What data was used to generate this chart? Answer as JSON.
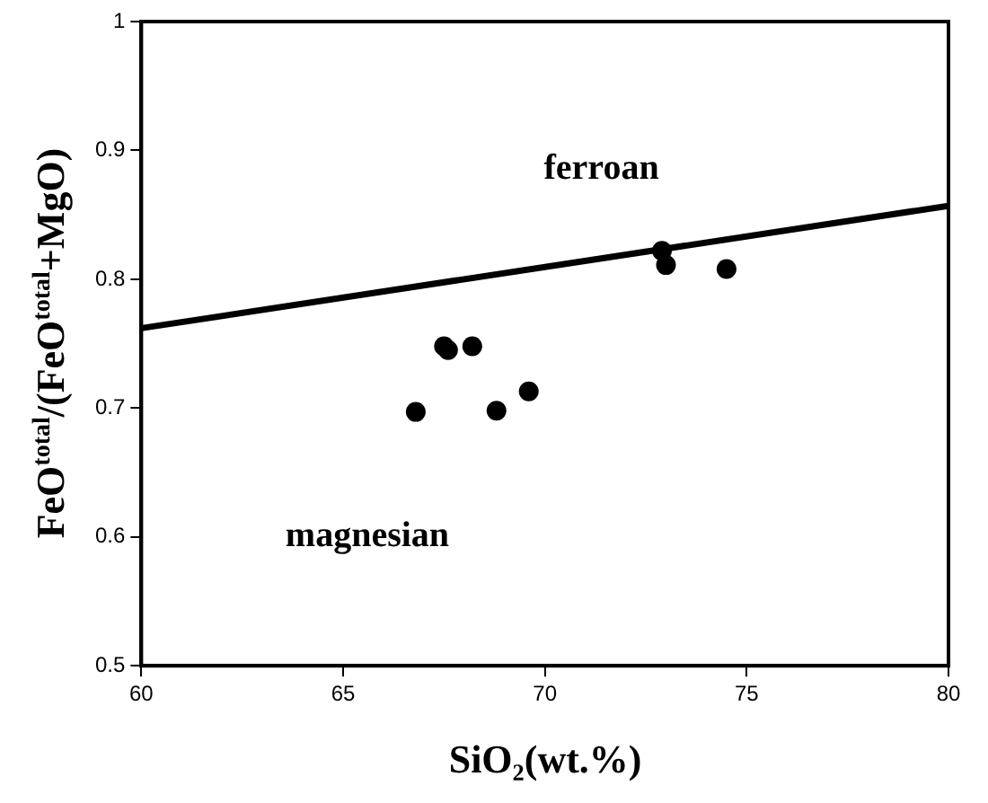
{
  "chart_data": {
    "type": "scatter",
    "xlabel": "SiO₂(wt.%)",
    "ylabel": "FeO$^{total}$/(FeO$^{total}$+MgO)",
    "series": [
      {
        "color": "#000000",
        "marker": "circle",
        "x": [
          66.8,
          67.5,
          67.6,
          68.2,
          68.8,
          69.6,
          72.9,
          73.0,
          74.5
        ],
        "values": [
          0.697,
          0.748,
          0.745,
          0.748,
          0.698,
          0.713,
          0.822,
          0.811,
          0.808
        ]
      },
      {
        "type": "line",
        "color": "#000000",
        "x": [
          60,
          80
        ],
        "values": [
          0.762,
          0.857
        ]
      }
    ],
    "xlim": [
      60,
      80
    ],
    "xticks": [
      60,
      65,
      70,
      75,
      80
    ],
    "ylim": [
      0.5,
      1.0
    ],
    "yticks": [
      0.5,
      0.6,
      0.7,
      0.8,
      0.9,
      1.0
    ],
    "grid": false,
    "legend": false,
    "annotations": [
      "ferroan",
      "magnesian"
    ]
  }
}
